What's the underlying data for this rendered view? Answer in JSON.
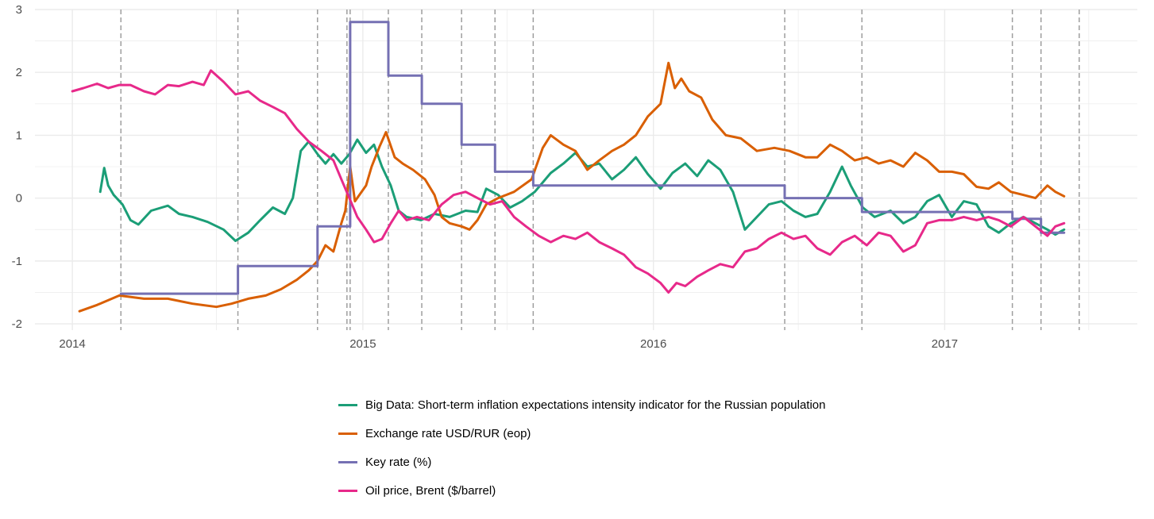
{
  "chart_data": {
    "type": "line",
    "x_axis": {
      "type": "date",
      "ticks": [
        "2014",
        "2015",
        "2016",
        "2017"
      ],
      "range": [
        "2013-11-15",
        "2017-08-31"
      ]
    },
    "y_axis": {
      "ticks": [
        "3",
        "2",
        "1",
        "0",
        "-1",
        "-2"
      ],
      "range": [
        -2.1,
        3.0
      ]
    },
    "grid": true,
    "legend_position": "bottom",
    "reference_lines": {
      "style": "dashed vertical",
      "dates": [
        "2014-03-03",
        "2014-07-28",
        "2014-11-05",
        "2014-12-12",
        "2014-12-16",
        "2015-02-02",
        "2015-03-16",
        "2015-05-05",
        "2015-06-16",
        "2015-08-03",
        "2016-06-14",
        "2016-09-19",
        "2017-03-27",
        "2017-05-02",
        "2017-06-19"
      ]
    },
    "series": [
      {
        "name": "Big Data: Short-term inflation expectations intensity indicator for the Russian population",
        "color": "#1b9e77",
        "points": [
          [
            "2014-02-05",
            0.1
          ],
          [
            "2014-02-10",
            0.48
          ],
          [
            "2014-02-15",
            0.2
          ],
          [
            "2014-02-22",
            0.05
          ],
          [
            "2014-03-05",
            -0.1
          ],
          [
            "2014-03-15",
            -0.35
          ],
          [
            "2014-03-25",
            -0.42
          ],
          [
            "2014-04-10",
            -0.2
          ],
          [
            "2014-05-01",
            -0.12
          ],
          [
            "2014-05-15",
            -0.25
          ],
          [
            "2014-06-01",
            -0.3
          ],
          [
            "2014-06-20",
            -0.38
          ],
          [
            "2014-07-10",
            -0.5
          ],
          [
            "2014-07-25",
            -0.68
          ],
          [
            "2014-08-10",
            -0.55
          ],
          [
            "2014-08-25",
            -0.35
          ],
          [
            "2014-09-10",
            -0.15
          ],
          [
            "2014-09-25",
            -0.25
          ],
          [
            "2014-10-05",
            0.0
          ],
          [
            "2014-10-15",
            0.75
          ],
          [
            "2014-10-25",
            0.9
          ],
          [
            "2014-11-05",
            0.7
          ],
          [
            "2014-11-15",
            0.55
          ],
          [
            "2014-11-25",
            0.7
          ],
          [
            "2014-12-05",
            0.55
          ],
          [
            "2014-12-15",
            0.7
          ],
          [
            "2014-12-25",
            0.93
          ],
          [
            "2015-01-05",
            0.72
          ],
          [
            "2015-01-15",
            0.85
          ],
          [
            "2015-01-25",
            0.5
          ],
          [
            "2015-02-05",
            0.2
          ],
          [
            "2015-02-15",
            -0.2
          ],
          [
            "2015-02-25",
            -0.3
          ],
          [
            "2015-03-15",
            -0.35
          ],
          [
            "2015-04-01",
            -0.25
          ],
          [
            "2015-04-20",
            -0.3
          ],
          [
            "2015-05-10",
            -0.2
          ],
          [
            "2015-05-25",
            -0.22
          ],
          [
            "2015-06-05",
            0.15
          ],
          [
            "2015-06-20",
            0.05
          ],
          [
            "2015-07-05",
            -0.15
          ],
          [
            "2015-07-20",
            -0.05
          ],
          [
            "2015-08-05",
            0.1
          ],
          [
            "2015-08-25",
            0.4
          ],
          [
            "2015-09-10",
            0.55
          ],
          [
            "2015-09-25",
            0.72
          ],
          [
            "2015-10-10",
            0.5
          ],
          [
            "2015-10-25",
            0.55
          ],
          [
            "2015-11-10",
            0.3
          ],
          [
            "2015-11-25",
            0.45
          ],
          [
            "2015-12-10",
            0.65
          ],
          [
            "2015-12-25",
            0.38
          ],
          [
            "2016-01-10",
            0.15
          ],
          [
            "2016-01-25",
            0.4
          ],
          [
            "2016-02-10",
            0.55
          ],
          [
            "2016-02-25",
            0.35
          ],
          [
            "2016-03-10",
            0.6
          ],
          [
            "2016-03-25",
            0.45
          ],
          [
            "2016-04-10",
            0.1
          ],
          [
            "2016-04-25",
            -0.5
          ],
          [
            "2016-05-10",
            -0.3
          ],
          [
            "2016-05-25",
            -0.1
          ],
          [
            "2016-06-10",
            -0.05
          ],
          [
            "2016-06-25",
            -0.2
          ],
          [
            "2016-07-10",
            -0.3
          ],
          [
            "2016-07-25",
            -0.25
          ],
          [
            "2016-08-10",
            0.1
          ],
          [
            "2016-08-25",
            0.5
          ],
          [
            "2016-09-05",
            0.2
          ],
          [
            "2016-09-20",
            -0.15
          ],
          [
            "2016-10-05",
            -0.3
          ],
          [
            "2016-10-25",
            -0.2
          ],
          [
            "2016-11-10",
            -0.4
          ],
          [
            "2016-11-25",
            -0.3
          ],
          [
            "2016-12-10",
            -0.05
          ],
          [
            "2016-12-25",
            0.05
          ],
          [
            "2017-01-10",
            -0.3
          ],
          [
            "2017-01-25",
            -0.05
          ],
          [
            "2017-02-10",
            -0.1
          ],
          [
            "2017-02-25",
            -0.45
          ],
          [
            "2017-03-10",
            -0.55
          ],
          [
            "2017-03-25",
            -0.4
          ],
          [
            "2017-04-10",
            -0.3
          ],
          [
            "2017-04-25",
            -0.4
          ],
          [
            "2017-05-10",
            -0.5
          ],
          [
            "2017-05-20",
            -0.58
          ],
          [
            "2017-05-31",
            -0.5
          ]
        ]
      },
      {
        "name": "Exchange rate USD/RUR (eop)",
        "color": "#d95f02",
        "points": [
          [
            "2014-01-10",
            -1.8
          ],
          [
            "2014-02-01",
            -1.7
          ],
          [
            "2014-03-01",
            -1.55
          ],
          [
            "2014-04-01",
            -1.6
          ],
          [
            "2014-05-01",
            -1.6
          ],
          [
            "2014-06-01",
            -1.68
          ],
          [
            "2014-07-01",
            -1.73
          ],
          [
            "2014-07-20",
            -1.68
          ],
          [
            "2014-08-10",
            -1.6
          ],
          [
            "2014-09-01",
            -1.55
          ],
          [
            "2014-09-20",
            -1.45
          ],
          [
            "2014-10-10",
            -1.3
          ],
          [
            "2014-10-25",
            -1.15
          ],
          [
            "2014-11-05",
            -1.0
          ],
          [
            "2014-11-15",
            -0.75
          ],
          [
            "2014-11-25",
            -0.85
          ],
          [
            "2014-12-05",
            -0.4
          ],
          [
            "2014-12-10",
            -0.2
          ],
          [
            "2014-12-16",
            0.5
          ],
          [
            "2014-12-22",
            -0.05
          ],
          [
            "2015-01-05",
            0.2
          ],
          [
            "2015-01-12",
            0.5
          ],
          [
            "2015-01-22",
            0.82
          ],
          [
            "2015-01-30",
            1.05
          ],
          [
            "2015-02-10",
            0.65
          ],
          [
            "2015-02-20",
            0.55
          ],
          [
            "2015-03-05",
            0.45
          ],
          [
            "2015-03-20",
            0.3
          ],
          [
            "2015-04-01",
            0.05
          ],
          [
            "2015-04-10",
            -0.3
          ],
          [
            "2015-04-20",
            -0.4
          ],
          [
            "2015-05-05",
            -0.45
          ],
          [
            "2015-05-15",
            -0.5
          ],
          [
            "2015-05-25",
            -0.35
          ],
          [
            "2015-06-05",
            -0.1
          ],
          [
            "2015-06-20",
            0.0
          ],
          [
            "2015-07-10",
            0.1
          ],
          [
            "2015-08-01",
            0.3
          ],
          [
            "2015-08-15",
            0.8
          ],
          [
            "2015-08-25",
            1.0
          ],
          [
            "2015-09-10",
            0.85
          ],
          [
            "2015-09-25",
            0.75
          ],
          [
            "2015-10-10",
            0.45
          ],
          [
            "2015-10-25",
            0.6
          ],
          [
            "2015-11-10",
            0.75
          ],
          [
            "2015-11-25",
            0.85
          ],
          [
            "2015-12-10",
            1.0
          ],
          [
            "2015-12-25",
            1.3
          ],
          [
            "2016-01-10",
            1.5
          ],
          [
            "2016-01-20",
            2.15
          ],
          [
            "2016-01-28",
            1.75
          ],
          [
            "2016-02-05",
            1.9
          ],
          [
            "2016-02-15",
            1.7
          ],
          [
            "2016-03-01",
            1.6
          ],
          [
            "2016-03-15",
            1.25
          ],
          [
            "2016-04-01",
            1.0
          ],
          [
            "2016-04-20",
            0.95
          ],
          [
            "2016-05-10",
            0.75
          ],
          [
            "2016-06-01",
            0.8
          ],
          [
            "2016-06-20",
            0.75
          ],
          [
            "2016-07-10",
            0.65
          ],
          [
            "2016-07-25",
            0.65
          ],
          [
            "2016-08-10",
            0.85
          ],
          [
            "2016-08-25",
            0.75
          ],
          [
            "2016-09-10",
            0.6
          ],
          [
            "2016-09-25",
            0.65
          ],
          [
            "2016-10-10",
            0.55
          ],
          [
            "2016-10-25",
            0.6
          ],
          [
            "2016-11-10",
            0.5
          ],
          [
            "2016-11-25",
            0.72
          ],
          [
            "2016-12-10",
            0.6
          ],
          [
            "2016-12-25",
            0.42
          ],
          [
            "2017-01-10",
            0.42
          ],
          [
            "2017-01-25",
            0.38
          ],
          [
            "2017-02-10",
            0.18
          ],
          [
            "2017-02-25",
            0.15
          ],
          [
            "2017-03-10",
            0.25
          ],
          [
            "2017-03-25",
            0.1
          ],
          [
            "2017-04-10",
            0.05
          ],
          [
            "2017-04-25",
            0.0
          ],
          [
            "2017-05-10",
            0.2
          ],
          [
            "2017-05-20",
            0.1
          ],
          [
            "2017-05-31",
            0.03
          ]
        ]
      },
      {
        "name": "Key rate (%)",
        "color": "#7570b3",
        "steps": [
          [
            "2014-03-03",
            -1.52
          ],
          [
            "2014-07-28",
            -1.08
          ],
          [
            "2014-11-05",
            -0.45
          ],
          [
            "2014-12-16",
            2.8
          ],
          [
            "2015-02-02",
            1.95
          ],
          [
            "2015-03-16",
            1.5
          ],
          [
            "2015-05-05",
            0.85
          ],
          [
            "2015-06-16",
            0.42
          ],
          [
            "2015-08-03",
            0.2
          ],
          [
            "2016-06-14",
            0.0
          ],
          [
            "2016-09-19",
            -0.22
          ],
          [
            "2017-03-27",
            -0.33
          ],
          [
            "2017-05-02",
            -0.55
          ],
          [
            "2017-05-31",
            -0.55
          ]
        ]
      },
      {
        "name": "Oil price, Brent ($/barrel)",
        "color": "#e7298a",
        "points": [
          [
            "2014-01-01",
            1.7
          ],
          [
            "2014-01-15",
            1.75
          ],
          [
            "2014-02-01",
            1.82
          ],
          [
            "2014-02-15",
            1.75
          ],
          [
            "2014-03-01",
            1.8
          ],
          [
            "2014-03-15",
            1.8
          ],
          [
            "2014-04-01",
            1.7
          ],
          [
            "2014-04-15",
            1.65
          ],
          [
            "2014-05-01",
            1.8
          ],
          [
            "2014-05-15",
            1.78
          ],
          [
            "2014-06-01",
            1.85
          ],
          [
            "2014-06-15",
            1.8
          ],
          [
            "2014-06-24",
            2.03
          ],
          [
            "2014-07-10",
            1.85
          ],
          [
            "2014-07-25",
            1.65
          ],
          [
            "2014-08-10",
            1.7
          ],
          [
            "2014-08-25",
            1.55
          ],
          [
            "2014-09-10",
            1.45
          ],
          [
            "2014-09-25",
            1.35
          ],
          [
            "2014-10-10",
            1.1
          ],
          [
            "2014-10-25",
            0.9
          ],
          [
            "2014-11-10",
            0.75
          ],
          [
            "2014-11-25",
            0.6
          ],
          [
            "2014-12-05",
            0.3
          ],
          [
            "2014-12-15",
            0.0
          ],
          [
            "2014-12-25",
            -0.3
          ],
          [
            "2015-01-05",
            -0.5
          ],
          [
            "2015-01-15",
            -0.7
          ],
          [
            "2015-01-25",
            -0.65
          ],
          [
            "2015-02-05",
            -0.4
          ],
          [
            "2015-02-15",
            -0.2
          ],
          [
            "2015-02-25",
            -0.35
          ],
          [
            "2015-03-10",
            -0.3
          ],
          [
            "2015-03-25",
            -0.35
          ],
          [
            "2015-04-10",
            -0.1
          ],
          [
            "2015-04-25",
            0.05
          ],
          [
            "2015-05-10",
            0.1
          ],
          [
            "2015-05-25",
            0.0
          ],
          [
            "2015-06-10",
            -0.1
          ],
          [
            "2015-06-25",
            -0.05
          ],
          [
            "2015-07-10",
            -0.3
          ],
          [
            "2015-07-25",
            -0.45
          ],
          [
            "2015-08-10",
            -0.6
          ],
          [
            "2015-08-25",
            -0.7
          ],
          [
            "2015-09-10",
            -0.6
          ],
          [
            "2015-09-25",
            -0.65
          ],
          [
            "2015-10-10",
            -0.55
          ],
          [
            "2015-10-25",
            -0.7
          ],
          [
            "2015-11-10",
            -0.8
          ],
          [
            "2015-11-25",
            -0.9
          ],
          [
            "2015-12-10",
            -1.1
          ],
          [
            "2015-12-25",
            -1.2
          ],
          [
            "2016-01-10",
            -1.35
          ],
          [
            "2016-01-20",
            -1.5
          ],
          [
            "2016-01-30",
            -1.35
          ],
          [
            "2016-02-10",
            -1.4
          ],
          [
            "2016-02-25",
            -1.25
          ],
          [
            "2016-03-10",
            -1.15
          ],
          [
            "2016-03-25",
            -1.05
          ],
          [
            "2016-04-10",
            -1.1
          ],
          [
            "2016-04-25",
            -0.85
          ],
          [
            "2016-05-10",
            -0.8
          ],
          [
            "2016-05-25",
            -0.65
          ],
          [
            "2016-06-10",
            -0.55
          ],
          [
            "2016-06-25",
            -0.65
          ],
          [
            "2016-07-10",
            -0.6
          ],
          [
            "2016-07-25",
            -0.8
          ],
          [
            "2016-08-10",
            -0.9
          ],
          [
            "2016-08-25",
            -0.7
          ],
          [
            "2016-09-10",
            -0.6
          ],
          [
            "2016-09-25",
            -0.75
          ],
          [
            "2016-10-10",
            -0.55
          ],
          [
            "2016-10-25",
            -0.6
          ],
          [
            "2016-11-10",
            -0.85
          ],
          [
            "2016-11-25",
            -0.75
          ],
          [
            "2016-12-10",
            -0.4
          ],
          [
            "2016-12-25",
            -0.35
          ],
          [
            "2017-01-10",
            -0.35
          ],
          [
            "2017-01-25",
            -0.3
          ],
          [
            "2017-02-10",
            -0.35
          ],
          [
            "2017-02-25",
            -0.3
          ],
          [
            "2017-03-10",
            -0.35
          ],
          [
            "2017-03-25",
            -0.45
          ],
          [
            "2017-04-10",
            -0.3
          ],
          [
            "2017-04-25",
            -0.45
          ],
          [
            "2017-05-10",
            -0.6
          ],
          [
            "2017-05-20",
            -0.45
          ],
          [
            "2017-05-31",
            -0.4
          ]
        ]
      }
    ]
  }
}
